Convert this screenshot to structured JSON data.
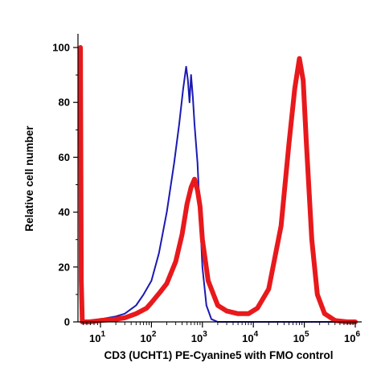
{
  "chart_data": {
    "type": "line",
    "xlabel": "CD3 (UCHT1) PE-Cyanine5 with FMO control",
    "ylabel": "Relative cell number",
    "x_scale": "biexponential-log",
    "xlim": [
      1,
      1000000
    ],
    "ylim": [
      0,
      105
    ],
    "y_ticks": [
      0,
      20,
      40,
      60,
      80,
      100
    ],
    "x_ticks": [
      {
        "value": 10,
        "base": "10",
        "exp": "1"
      },
      {
        "value": 100,
        "base": "10",
        "exp": "2"
      },
      {
        "value": 1000,
        "base": "10",
        "exp": "3"
      },
      {
        "value": 10000,
        "base": "10",
        "exp": "4"
      },
      {
        "value": 100000,
        "base": "10",
        "exp": "5"
      },
      {
        "value": 1000000,
        "base": "10",
        "exp": "6"
      }
    ],
    "grid": false,
    "legend": "none",
    "series": [
      {
        "color": "#1a1ab4",
        "line": "thin",
        "points": [
          [
            1.1,
            100
          ],
          [
            1.2,
            10
          ],
          [
            1.35,
            0
          ],
          [
            2,
            0
          ],
          [
            5,
            0.5
          ],
          [
            10,
            1
          ],
          [
            20,
            2
          ],
          [
            30,
            3
          ],
          [
            50,
            6
          ],
          [
            70,
            10
          ],
          [
            100,
            15
          ],
          [
            140,
            25
          ],
          [
            200,
            40
          ],
          [
            280,
            58
          ],
          [
            350,
            72
          ],
          [
            420,
            85
          ],
          [
            480,
            93
          ],
          [
            520,
            88
          ],
          [
            560,
            80
          ],
          [
            600,
            90
          ],
          [
            650,
            82
          ],
          [
            700,
            72
          ],
          [
            800,
            58
          ],
          [
            900,
            38
          ],
          [
            1000,
            20
          ],
          [
            1200,
            6
          ],
          [
            1500,
            1
          ],
          [
            2000,
            0
          ],
          [
            1000000,
            0
          ]
        ]
      },
      {
        "color": "#e8191c",
        "line": "thick",
        "points": [
          [
            1.1,
            100
          ],
          [
            1.2,
            15
          ],
          [
            1.35,
            0
          ],
          [
            3,
            0
          ],
          [
            10,
            0.5
          ],
          [
            20,
            1
          ],
          [
            30,
            1.5
          ],
          [
            50,
            3
          ],
          [
            80,
            5
          ],
          [
            100,
            7
          ],
          [
            150,
            11
          ],
          [
            200,
            14
          ],
          [
            300,
            22
          ],
          [
            400,
            32
          ],
          [
            500,
            43
          ],
          [
            600,
            49
          ],
          [
            700,
            52
          ],
          [
            800,
            48
          ],
          [
            900,
            42
          ],
          [
            1000,
            30
          ],
          [
            1300,
            15
          ],
          [
            2000,
            6
          ],
          [
            3000,
            4
          ],
          [
            5000,
            3
          ],
          [
            8000,
            3
          ],
          [
            12000,
            5
          ],
          [
            20000,
            12
          ],
          [
            35000,
            35
          ],
          [
            50000,
            65
          ],
          [
            65000,
            85
          ],
          [
            80000,
            96
          ],
          [
            95000,
            88
          ],
          [
            110000,
            65
          ],
          [
            140000,
            30
          ],
          [
            180000,
            10
          ],
          [
            250000,
            3
          ],
          [
            400000,
            0.5
          ],
          [
            700000,
            0
          ],
          [
            1000000,
            0
          ]
        ]
      }
    ]
  }
}
